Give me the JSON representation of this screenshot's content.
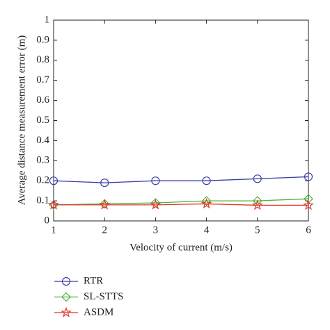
{
  "chart_data": {
    "type": "line",
    "x_label": "Velocity of current (m/s)",
    "y_label": "Average distance measurement error (m)",
    "x": [
      1,
      2,
      3,
      4,
      5,
      6
    ],
    "xlim": [
      1,
      6
    ],
    "xticks": [
      1,
      2,
      3,
      4,
      5,
      6
    ],
    "ylim": [
      0,
      1
    ],
    "yticks": [
      0,
      0.1,
      0.2,
      0.3,
      0.4,
      0.5,
      0.6,
      0.7,
      0.8,
      0.9,
      1
    ],
    "series": [
      {
        "name": "RTR",
        "color": "#3b3fa8",
        "marker": "circle",
        "values": [
          0.2,
          0.19,
          0.2,
          0.2,
          0.21,
          0.22
        ]
      },
      {
        "name": "SL-STTS",
        "color": "#4caf3a",
        "marker": "diamond",
        "values": [
          0.08,
          0.085,
          0.09,
          0.1,
          0.1,
          0.11
        ]
      },
      {
        "name": "ASDM",
        "color": "#e0382a",
        "marker": "star",
        "values": [
          0.08,
          0.08,
          0.08,
          0.085,
          0.078,
          0.078
        ]
      }
    ]
  }
}
